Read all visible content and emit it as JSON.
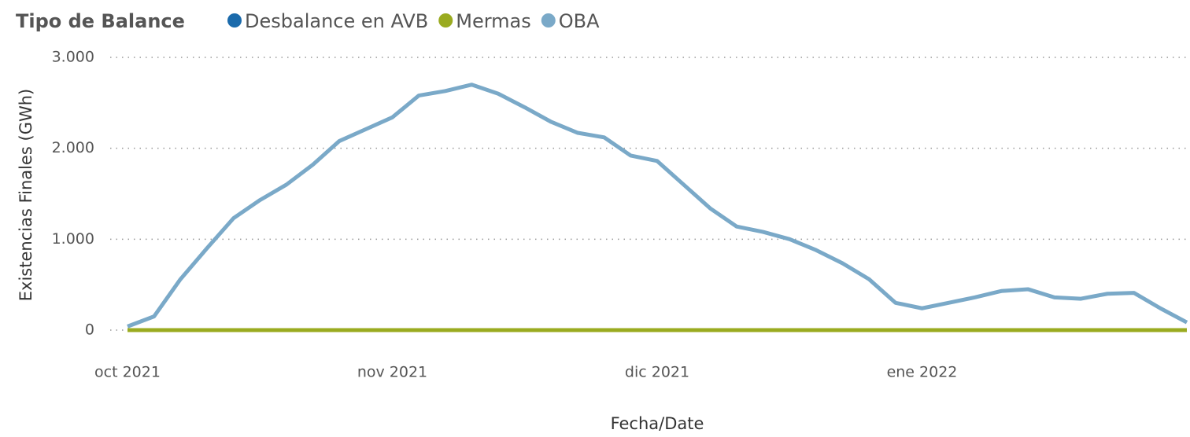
{
  "chart_data": {
    "type": "line",
    "legend_title": "Tipo de Balance",
    "xlabel": "Fecha/Date",
    "ylabel": "Existencias Finales (GWh)",
    "categories": [
      "oct 2021",
      null,
      null,
      null,
      null,
      null,
      null,
      null,
      null,
      null,
      "nov 2021",
      null,
      null,
      null,
      null,
      null,
      null,
      null,
      null,
      null,
      "dic 2021",
      null,
      null,
      null,
      null,
      null,
      null,
      null,
      null,
      null,
      "ene 2022",
      null,
      null,
      null,
      null,
      null,
      null,
      null,
      null,
      null,
      null
    ],
    "series": [
      {
        "name": "Desbalance en AVB",
        "color": "#1a6aab",
        "values": [
          0,
          0,
          0,
          0,
          0,
          0,
          0,
          0,
          0,
          0,
          0,
          0,
          0,
          0,
          0,
          0,
          0,
          0,
          0,
          0,
          0,
          0,
          0,
          0,
          0,
          0,
          0,
          0,
          0,
          0,
          0,
          0,
          0,
          0,
          0,
          0,
          0,
          0,
          0,
          0,
          0
        ]
      },
      {
        "name": "Mermas",
        "color": "#9aab20",
        "values": [
          0,
          0,
          0,
          0,
          0,
          0,
          0,
          0,
          0,
          0,
          0,
          0,
          0,
          0,
          0,
          0,
          0,
          0,
          0,
          0,
          0,
          0,
          0,
          0,
          0,
          0,
          0,
          0,
          0,
          0,
          0,
          0,
          0,
          0,
          0,
          0,
          0,
          0,
          0,
          0,
          0
        ]
      },
      {
        "name": "OBA",
        "color": "#7aa9c8",
        "values": [
          40,
          150,
          560,
          900,
          1230,
          1430,
          1600,
          1820,
          2080,
          2210,
          2340,
          2580,
          2630,
          2700,
          2600,
          2450,
          2290,
          2170,
          2120,
          1920,
          1860,
          1600,
          1340,
          1140,
          1080,
          1000,
          880,
          735,
          560,
          300,
          240,
          300,
          360,
          430,
          450,
          360,
          345,
          400,
          410,
          240,
          85
        ]
      }
    ],
    "ylim": [
      0,
      3000
    ],
    "yticks": [
      0,
      {
        "value": 1000,
        "label": "1.000"
      },
      {
        "value": 2000,
        "label": "2.000"
      },
      {
        "value": 3000,
        "label": "3.000"
      }
    ],
    "grid": true
  }
}
